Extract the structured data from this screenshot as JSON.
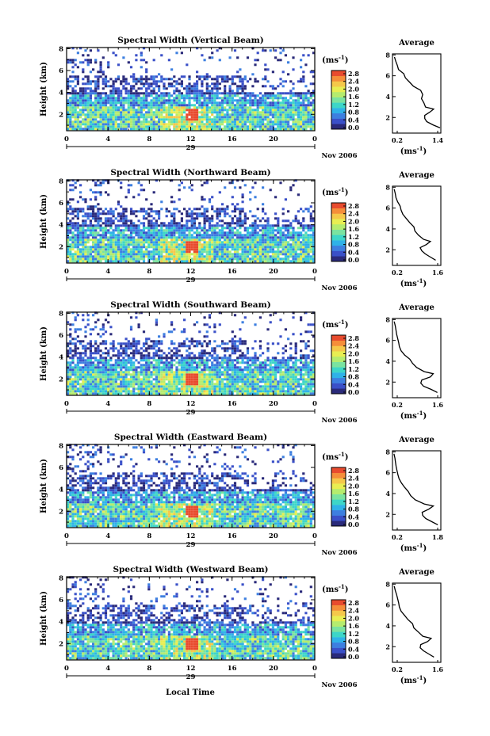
{
  "figure": {
    "xlabel": "Local Time",
    "date_label": "29",
    "month_label": "Nov 2006",
    "colorbar_unit_base": "(ms",
    "colorbar_unit_exp": "-1",
    "colorbar_unit_close": ")",
    "avg_title": "Average",
    "avg_unit_base": "(ms",
    "avg_unit_exp": "-1",
    "avg_unit_close": ")",
    "ylabel": "Height (km)"
  },
  "chart_data": [
    {
      "type": "heatmap",
      "title": "Spectral Width (Vertical Beam)",
      "x_ticks": [
        "0",
        "4",
        "8",
        "12",
        "16",
        "20",
        "0"
      ],
      "xlim": [
        0,
        24
      ],
      "y_ticks": [
        "2",
        "4",
        "6",
        "8"
      ],
      "ylim": [
        0.5,
        8.1
      ],
      "colorbar_ticks": [
        "2.8",
        "2.4",
        "2.0",
        "1.6",
        "1.2",
        "0.8",
        "0.4",
        "0.0"
      ],
      "colorbar_range": [
        0.0,
        3.0
      ],
      "avg_ticks": [
        "0.2",
        "1.4"
      ],
      "avg_xlim": [
        0.2,
        1.4
      ],
      "avg_profile": {
        "height": [
          1.0,
          1.3,
          1.6,
          1.9,
          2.2,
          2.5,
          2.8,
          3.0,
          3.4,
          3.8,
          4.2,
          4.6,
          5.0,
          5.4,
          5.8,
          6.2,
          6.6,
          7.0,
          7.4,
          7.8
        ],
        "width": [
          1.38,
          1.2,
          1.05,
          1.0,
          1.0,
          1.12,
          1.22,
          1.02,
          0.98,
          0.92,
          0.95,
          0.9,
          0.72,
          0.62,
          0.52,
          0.48,
          0.35,
          0.32,
          0.28,
          0.25
        ]
      }
    },
    {
      "type": "heatmap",
      "title": "Spectral Width (Northward Beam)",
      "x_ticks": [
        "0",
        "4",
        "8",
        "12",
        "16",
        "20",
        "0"
      ],
      "xlim": [
        0,
        24
      ],
      "y_ticks": [
        "2",
        "4",
        "6",
        "8"
      ],
      "ylim": [
        0.5,
        8.1
      ],
      "colorbar_ticks": [
        "2.8",
        "2.4",
        "2.0",
        "1.6",
        "1.2",
        "0.8",
        "0.4",
        "0.0"
      ],
      "colorbar_range": [
        0.0,
        3.0
      ],
      "avg_ticks": [
        "0.2",
        "1.6"
      ],
      "avg_xlim": [
        0.2,
        1.6
      ],
      "avg_profile": {
        "height": [
          1.0,
          1.3,
          1.6,
          1.9,
          2.2,
          2.5,
          2.8,
          3.0,
          3.4,
          3.8,
          4.2,
          4.6,
          5.0,
          5.4,
          5.8,
          6.2,
          6.6,
          7.0,
          7.4,
          7.8
        ],
        "width": [
          1.45,
          1.3,
          1.15,
          1.05,
          1.0,
          1.18,
          1.3,
          1.1,
          0.95,
          0.85,
          0.82,
          0.7,
          0.6,
          0.5,
          0.45,
          0.42,
          0.35,
          0.3,
          0.28,
          0.25
        ]
      }
    },
    {
      "type": "heatmap",
      "title": "Spectral Width (Southward Beam)",
      "x_ticks": [
        "0",
        "4",
        "8",
        "12",
        "16",
        "20",
        "0"
      ],
      "xlim": [
        0,
        24
      ],
      "y_ticks": [
        "2",
        "4",
        "6",
        "8"
      ],
      "ylim": [
        0.5,
        8.1
      ],
      "colorbar_ticks": [
        "2.8",
        "2.4",
        "2.0",
        "1.6",
        "1.2",
        "0.8",
        "0.4",
        "0.0"
      ],
      "colorbar_range": [
        0.0,
        3.0
      ],
      "avg_ticks": [
        "0.2",
        "1.6"
      ],
      "avg_xlim": [
        0.2,
        1.6
      ],
      "avg_profile": {
        "height": [
          1.0,
          1.3,
          1.6,
          1.9,
          2.2,
          2.5,
          2.8,
          3.0,
          3.4,
          3.8,
          4.2,
          4.6,
          5.0,
          5.4,
          5.8,
          6.2,
          6.6,
          7.0,
          7.4,
          7.8
        ],
        "width": [
          1.5,
          1.32,
          1.1,
          1.02,
          1.05,
          1.3,
          1.38,
          1.12,
          0.9,
          0.78,
          0.7,
          0.55,
          0.45,
          0.4,
          0.38,
          0.35,
          0.32,
          0.3,
          0.28,
          0.25
        ]
      }
    },
    {
      "type": "heatmap",
      "title": "Spectral Width (Eastward Beam)",
      "x_ticks": [
        "0",
        "4",
        "8",
        "12",
        "16",
        "20",
        "0"
      ],
      "xlim": [
        0,
        24
      ],
      "y_ticks": [
        "2",
        "4",
        "6",
        "8"
      ],
      "ylim": [
        0.5,
        8.1
      ],
      "colorbar_ticks": [
        "2.8",
        "2.4",
        "2.0",
        "1.6",
        "1.2",
        "0.8",
        "0.4",
        "0.0"
      ],
      "colorbar_range": [
        0.0,
        3.0
      ],
      "avg_ticks": [
        "0.2",
        "1.8"
      ],
      "avg_xlim": [
        0.2,
        1.8
      ],
      "avg_profile": {
        "height": [
          1.0,
          1.3,
          1.6,
          1.9,
          2.2,
          2.5,
          2.8,
          3.0,
          3.4,
          3.8,
          4.2,
          4.6,
          5.0,
          5.4,
          5.8,
          6.2,
          6.6,
          7.0,
          7.4,
          7.8
        ],
        "width": [
          1.7,
          1.5,
          1.3,
          1.2,
          1.18,
          1.4,
          1.55,
          1.25,
          0.95,
          0.8,
          0.72,
          0.6,
          0.5,
          0.42,
          0.38,
          0.35,
          0.32,
          0.3,
          0.28,
          0.25
        ]
      }
    },
    {
      "type": "heatmap",
      "title": "Spectral Width (Westward Beam)",
      "x_ticks": [
        "0",
        "4",
        "8",
        "12",
        "16",
        "20",
        "0"
      ],
      "xlim": [
        0,
        24
      ],
      "y_ticks": [
        "2",
        "4",
        "6",
        "8"
      ],
      "ylim": [
        0.5,
        8.1
      ],
      "colorbar_ticks": [
        "2.8",
        "2.4",
        "2.0",
        "1.6",
        "1.2",
        "0.8",
        "0.4",
        "0.0"
      ],
      "colorbar_range": [
        0.0,
        3.0
      ],
      "avg_ticks": [
        "0.2",
        "1.6"
      ],
      "avg_xlim": [
        0.2,
        1.6
      ],
      "avg_profile": {
        "height": [
          1.0,
          1.3,
          1.6,
          1.9,
          2.2,
          2.5,
          2.8,
          3.0,
          3.4,
          3.8,
          4.2,
          4.6,
          5.0,
          5.4,
          5.8,
          6.2,
          6.6,
          7.0,
          7.4,
          7.8
        ],
        "width": [
          1.4,
          1.25,
          1.1,
          1.0,
          1.02,
          1.22,
          1.32,
          1.08,
          0.95,
          0.82,
          0.78,
          0.65,
          0.55,
          0.45,
          0.4,
          0.38,
          0.35,
          0.32,
          0.28,
          0.25
        ]
      }
    }
  ]
}
